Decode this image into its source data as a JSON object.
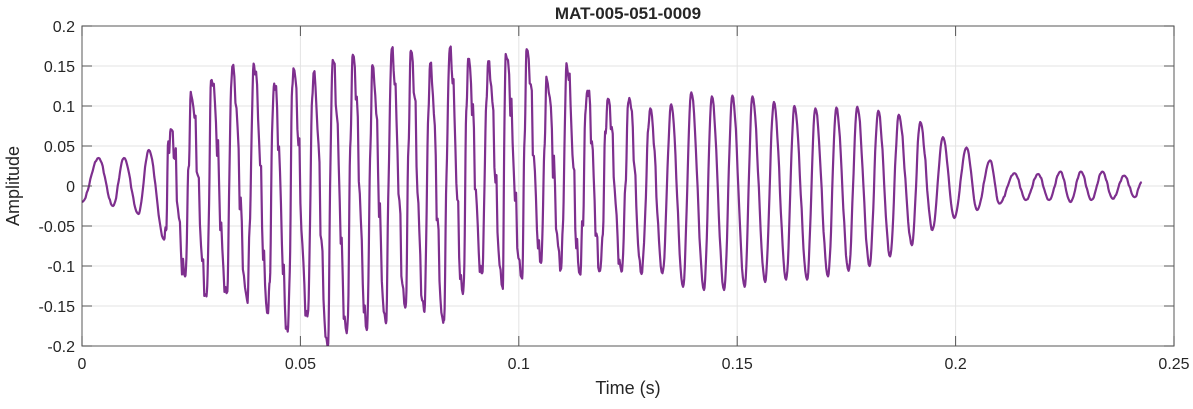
{
  "chart_data": {
    "type": "line",
    "title": "MAT-005-051-0009",
    "xlabel": "Time (s)",
    "ylabel": "Amplitude",
    "xlim": [
      0,
      0.25
    ],
    "ylim": [
      -0.2,
      0.2
    ],
    "grid": true,
    "line_color": "#7E2F8E",
    "xticks": [
      0,
      0.05,
      0.1,
      0.15,
      0.2,
      0.25
    ],
    "xtick_labels": [
      "0",
      "0.05",
      "0.1",
      "0.15",
      "0.2",
      "0.25"
    ],
    "yticks": [
      0.2,
      0.15,
      0.1,
      0.05,
      0,
      -0.05,
      -0.1,
      -0.15,
      -0.2
    ],
    "ytick_labels": [
      "0.2",
      "0.15",
      "0.1",
      "0.05",
      "0",
      "-0.05",
      "-0.1",
      "-0.15",
      "-0.2"
    ],
    "series": [
      {
        "name": "MAT-005-051-0009",
        "note": "approximate waveform extrema [time_s, amplitude]",
        "extrema": [
          [
            0,
            -0.02
          ],
          [
            0.0038,
            0.035
          ],
          [
            0.0071,
            -0.025
          ],
          [
            0.0096,
            0.035
          ],
          [
            0.0129,
            -0.035
          ],
          [
            0.0153,
            0.045
          ],
          [
            0.0188,
            -0.067
          ],
          [
            0.0203,
            0.071
          ],
          [
            0.0236,
            -0.113
          ],
          [
            0.025,
            0.114
          ],
          [
            0.0285,
            -0.138
          ],
          [
            0.0297,
            0.1325
          ],
          [
            0.0331,
            -0.134
          ],
          [
            0.0344,
            0.149
          ],
          [
            0.0378,
            -0.143
          ],
          [
            0.0394,
            0.151
          ],
          [
            0.0426,
            -0.159
          ],
          [
            0.044,
            0.128
          ],
          [
            0.0471,
            -0.182
          ],
          [
            0.0484,
            0.147
          ],
          [
            0.0516,
            -0.163
          ],
          [
            0.053,
            0.141
          ],
          [
            0.0562,
            -0.2
          ],
          [
            0.0574,
            0.1575
          ],
          [
            0.0606,
            -0.184
          ],
          [
            0.062,
            0.164
          ],
          [
            0.0652,
            -0.18
          ],
          [
            0.0665,
            0.151
          ],
          [
            0.0695,
            -0.17
          ],
          [
            0.0709,
            0.171
          ],
          [
            0.074,
            -0.152
          ],
          [
            0.0753,
            0.169
          ],
          [
            0.0783,
            -0.156
          ],
          [
            0.0797,
            0.153
          ],
          [
            0.0827,
            -0.171
          ],
          [
            0.0842,
            0.172
          ],
          [
            0.0872,
            -0.135
          ],
          [
            0.0884,
            0.159
          ],
          [
            0.0915,
            -0.109
          ],
          [
            0.093,
            0.156
          ],
          [
            0.0963,
            -0.127
          ],
          [
            0.097,
            0.165
          ],
          [
            0.1007,
            -0.115
          ],
          [
            0.1018,
            0.171
          ],
          [
            0.1051,
            -0.096
          ],
          [
            0.1064,
            0.134
          ],
          [
            0.1097,
            -0.103
          ],
          [
            0.111,
            0.151
          ],
          [
            0.114,
            -0.11
          ],
          [
            0.1157,
            0.119
          ],
          [
            0.1186,
            -0.106
          ],
          [
            0.1204,
            0.109
          ],
          [
            0.1235,
            -0.107
          ],
          [
            0.1253,
            0.11
          ],
          [
            0.1281,
            -0.11
          ],
          [
            0.1301,
            0.097
          ],
          [
            0.1329,
            -0.109
          ],
          [
            0.1349,
            0.102
          ],
          [
            0.1376,
            -0.126
          ],
          [
            0.1395,
            0.117
          ],
          [
            0.1424,
            -0.13
          ],
          [
            0.1442,
            0.112
          ],
          [
            0.147,
            -0.13
          ],
          [
            0.1489,
            0.113
          ],
          [
            0.1517,
            -0.126
          ],
          [
            0.1535,
            0.112
          ],
          [
            0.1564,
            -0.12
          ],
          [
            0.1584,
            0.105
          ],
          [
            0.1612,
            -0.117
          ],
          [
            0.1631,
            0.1
          ],
          [
            0.166,
            -0.117
          ],
          [
            0.1679,
            0.097
          ],
          [
            0.1708,
            -0.113
          ],
          [
            0.1727,
            0.098
          ],
          [
            0.1755,
            -0.106
          ],
          [
            0.1775,
            0.099
          ],
          [
            0.1803,
            -0.1
          ],
          [
            0.1823,
            0.094
          ],
          [
            0.185,
            -0.088
          ],
          [
            0.187,
            0.089
          ],
          [
            0.19,
            -0.074
          ],
          [
            0.1919,
            0.08
          ],
          [
            0.1947,
            -0.055
          ],
          [
            0.1971,
            0.061
          ],
          [
            0.1997,
            -0.04
          ],
          [
            0.2025,
            0.048
          ],
          [
            0.2049,
            -0.03
          ],
          [
            0.2079,
            0.032
          ],
          [
            0.21,
            -0.022
          ],
          [
            0.2135,
            0.016
          ],
          [
            0.2161,
            -0.0175
          ],
          [
            0.2189,
            0.015
          ],
          [
            0.2214,
            -0.0175
          ],
          [
            0.224,
            0.018
          ],
          [
            0.2263,
            -0.02
          ],
          [
            0.2287,
            0.018
          ],
          [
            0.2311,
            -0.0175
          ],
          [
            0.2336,
            0.018
          ],
          [
            0.236,
            -0.016
          ],
          [
            0.2386,
            0.013
          ],
          [
            0.241,
            -0.014
          ],
          [
            0.2426,
            0.005
          ]
        ]
      }
    ]
  }
}
